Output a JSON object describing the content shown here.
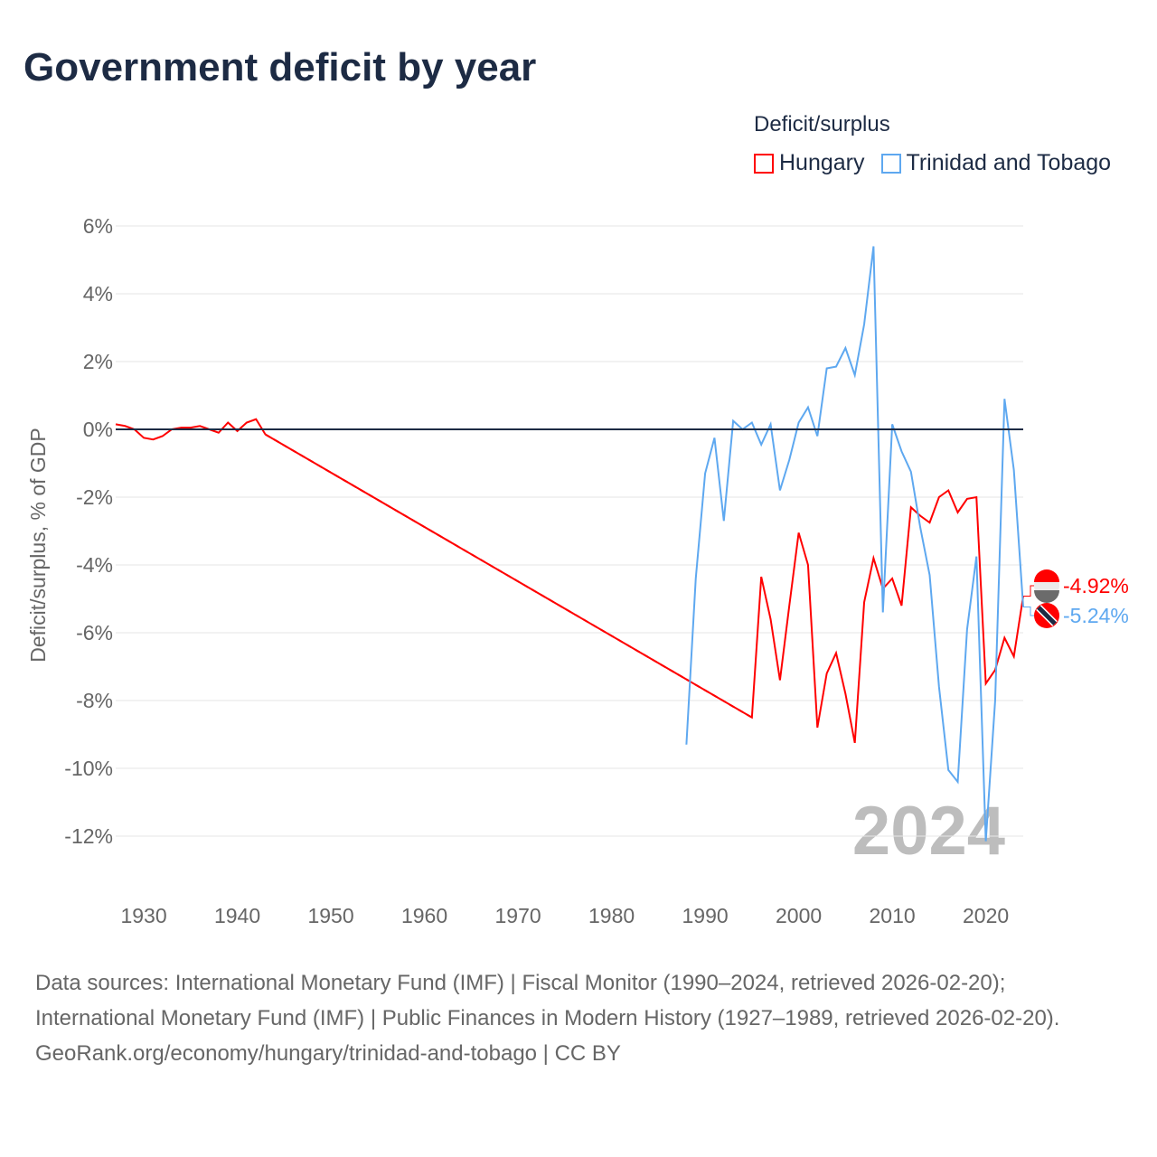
{
  "title": "Government deficit by year",
  "legend": {
    "title": "Deficit/surplus",
    "items": [
      {
        "label": "Hungary",
        "color": "#ff0000"
      },
      {
        "label": "Trinidad and Tobago",
        "color": "#5ea8f0"
      }
    ]
  },
  "chart_data": {
    "type": "line",
    "title": "Government deficit by year",
    "xlabel": "",
    "ylabel": "Deficit/surplus, % of GDP",
    "xlim": [
      1927,
      2024
    ],
    "ylim": [
      -13,
      6.5
    ],
    "xticks": [
      1930,
      1940,
      1950,
      1960,
      1970,
      1980,
      1990,
      2000,
      2010,
      2020
    ],
    "yticks": [
      6,
      4,
      2,
      0,
      -2,
      -4,
      -6,
      -8,
      -10,
      -12
    ],
    "ytick_labels": [
      "6%",
      "4%",
      "2%",
      "0%",
      "-2%",
      "-4%",
      "-6%",
      "-8%",
      "-10%",
      "-12%"
    ],
    "year_watermark": "2024",
    "series": [
      {
        "name": "Hungary",
        "color": "#ff0000",
        "end_label": "-4.92%",
        "x": [
          1927,
          1928,
          1929,
          1930,
          1931,
          1932,
          1933,
          1934,
          1935,
          1936,
          1937,
          1938,
          1939,
          1940,
          1941,
          1942,
          1943,
          1995,
          1996,
          1997,
          1998,
          1999,
          2000,
          2001,
          2002,
          2003,
          2004,
          2005,
          2006,
          2007,
          2008,
          2009,
          2010,
          2011,
          2012,
          2013,
          2014,
          2015,
          2016,
          2017,
          2018,
          2019,
          2020,
          2021,
          2022,
          2023,
          2024
        ],
        "y": [
          0.15,
          0.1,
          0,
          -0.25,
          -0.3,
          -0.2,
          0,
          0.05,
          0.05,
          0.1,
          0,
          -0.1,
          0.2,
          -0.05,
          0.2,
          0.3,
          -0.15,
          -8.5,
          -4.35,
          -5.6,
          -7.4,
          -5.2,
          -3.05,
          -4.0,
          -8.8,
          -7.2,
          -6.6,
          -7.8,
          -9.25,
          -5.1,
          -3.8,
          -4.7,
          -4.4,
          -5.2,
          -2.3,
          -2.55,
          -2.75,
          -2.0,
          -1.8,
          -2.45,
          -2.05,
          -2.0,
          -7.5,
          -7.1,
          -6.15,
          -6.7,
          -4.92
        ],
        "gap_after": 1943
      },
      {
        "name": "Trinidad and Tobago",
        "color": "#5ea8f0",
        "end_label": "-5.24%",
        "x": [
          1988,
          1989,
          1990,
          1991,
          1992,
          1993,
          1994,
          1995,
          1996,
          1997,
          1998,
          1999,
          2000,
          2001,
          2002,
          2003,
          2004,
          2005,
          2006,
          2007,
          2008,
          2009,
          2010,
          2011,
          2012,
          2013,
          2014,
          2015,
          2016,
          2017,
          2018,
          2019,
          2020,
          2021,
          2022,
          2023,
          2024
        ],
        "y": [
          -9.3,
          -4.4,
          -1.3,
          -0.25,
          -2.7,
          0.25,
          0,
          0.2,
          -0.45,
          0.15,
          -1.8,
          -0.9,
          0.2,
          0.65,
          -0.2,
          1.8,
          1.85,
          2.4,
          1.6,
          3.1,
          5.4,
          -5.4,
          0.15,
          -0.65,
          -1.25,
          -2.9,
          -4.3,
          -7.6,
          -10.05,
          -10.4,
          -5.9,
          -3.75,
          -12.15,
          -8.0,
          0.9,
          -1.2,
          -5.24
        ]
      }
    ]
  },
  "footer": {
    "sources": "Data sources: International Monetary Fund (IMF) | Fiscal Monitor (1990–2024, retrieved 2026-02-20); International Monetary Fund (IMF) | Public Finances in Modern History (1927–1989, retrieved 2026-02-20).",
    "link": "GeoRank.org/economy/hungary/trinidad-and-tobago | CC BY"
  }
}
